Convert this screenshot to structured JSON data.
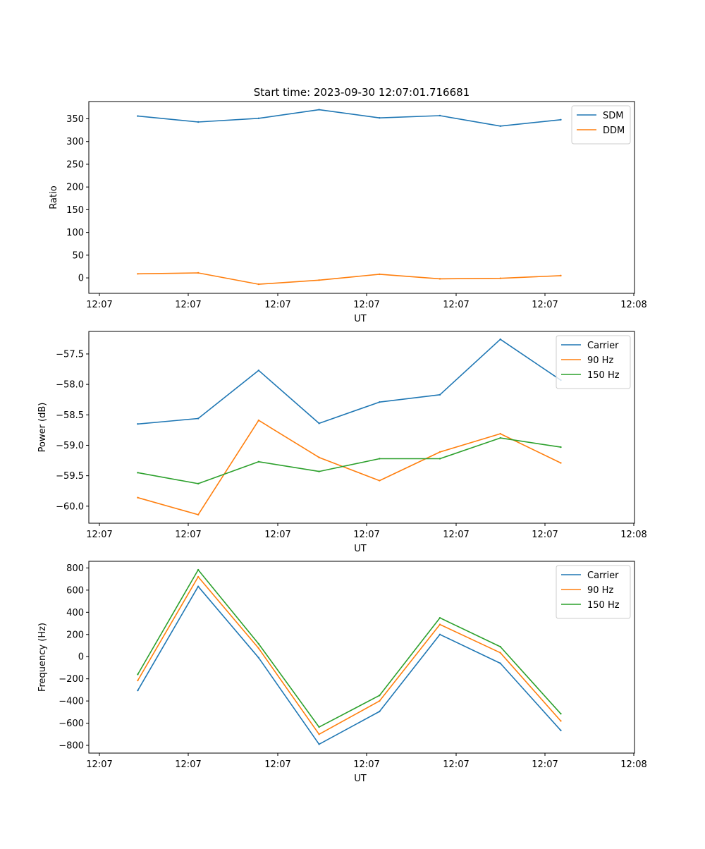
{
  "title": "Start time: 2023-09-30 12:07:01.716681",
  "colors": {
    "blue": "#1f77b4",
    "orange": "#ff7f0e",
    "green": "#2ca02c"
  },
  "chart_data": [
    {
      "type": "line",
      "xlabel": "UT",
      "ylabel": "Ratio",
      "x_tick_labels": [
        "12:07",
        "12:07",
        "12:07",
        "12:07",
        "12:07",
        "12:07",
        "12:08"
      ],
      "y_ticks": [
        0,
        50,
        100,
        150,
        200,
        250,
        300,
        350
      ],
      "y_tick_labels": [
        "0",
        "50",
        "100",
        "150",
        "200",
        "250",
        "300",
        "350"
      ],
      "ylim": [
        -34,
        388
      ],
      "x": [
        1,
        2,
        3,
        4,
        5,
        6,
        7,
        8
      ],
      "xlim": [
        0.19,
        9.22
      ],
      "legend": "top-right",
      "series": [
        {
          "name": "SDM",
          "color": "#1f77b4",
          "values": [
            356,
            343,
            351,
            370,
            352,
            357,
            334,
            348
          ]
        },
        {
          "name": "DDM",
          "color": "#ff7f0e",
          "values": [
            9,
            11,
            -14,
            -5,
            8,
            -2,
            -1,
            5
          ]
        }
      ]
    },
    {
      "type": "line",
      "xlabel": "UT",
      "ylabel": "Power (dB)",
      "x_tick_labels": [
        "12:07",
        "12:07",
        "12:07",
        "12:07",
        "12:07",
        "12:07",
        "12:08"
      ],
      "y_ticks": [
        -60.0,
        -59.5,
        -59.0,
        -58.5,
        -58.0,
        -57.5
      ],
      "y_tick_labels": [
        "−60.0",
        "−59.5",
        "−59.0",
        "−58.5",
        "−58.0",
        "−57.5"
      ],
      "ylim": [
        -60.28,
        -57.13
      ],
      "x": [
        1,
        2,
        3,
        4,
        5,
        6,
        7,
        8
      ],
      "xlim": [
        0.19,
        9.22
      ],
      "legend": "top-right",
      "series": [
        {
          "name": "Carrier",
          "color": "#1f77b4",
          "values": [
            -58.65,
            -58.56,
            -57.77,
            -58.64,
            -58.29,
            -58.17,
            -57.26,
            -57.93
          ]
        },
        {
          "name": "90 Hz",
          "color": "#ff7f0e",
          "values": [
            -59.86,
            -60.14,
            -58.59,
            -59.2,
            -59.58,
            -59.11,
            -58.81,
            -59.29
          ]
        },
        {
          "name": "150 Hz",
          "color": "#2ca02c",
          "values": [
            -59.45,
            -59.63,
            -59.27,
            -59.43,
            -59.22,
            -59.22,
            -58.88,
            -59.03
          ]
        }
      ]
    },
    {
      "type": "line",
      "xlabel": "UT",
      "ylabel": "Frequency (Hz)",
      "x_tick_labels": [
        "12:07",
        "12:07",
        "12:07",
        "12:07",
        "12:07",
        "12:07",
        "12:08"
      ],
      "y_ticks": [
        -800,
        -600,
        -400,
        -200,
        0,
        200,
        400,
        600,
        800
      ],
      "y_tick_labels": [
        "−800",
        "−600",
        "−400",
        "−200",
        "0",
        "200",
        "400",
        "600",
        "800"
      ],
      "ylim": [
        -870,
        860
      ],
      "x": [
        1,
        2,
        3,
        4,
        5,
        6,
        7,
        8
      ],
      "xlim": [
        0.19,
        9.22
      ],
      "legend": "top-right",
      "series": [
        {
          "name": "Carrier",
          "color": "#1f77b4",
          "values": [
            -305,
            633,
            -10,
            -790,
            -495,
            200,
            -60,
            -665
          ]
        },
        {
          "name": "90 Hz",
          "color": "#ff7f0e",
          "values": [
            -215,
            720,
            75,
            -700,
            -400,
            290,
            35,
            -580
          ]
        },
        {
          "name": "150 Hz",
          "color": "#2ca02c",
          "values": [
            -160,
            783,
            115,
            -635,
            -350,
            350,
            90,
            -515
          ]
        }
      ]
    }
  ]
}
